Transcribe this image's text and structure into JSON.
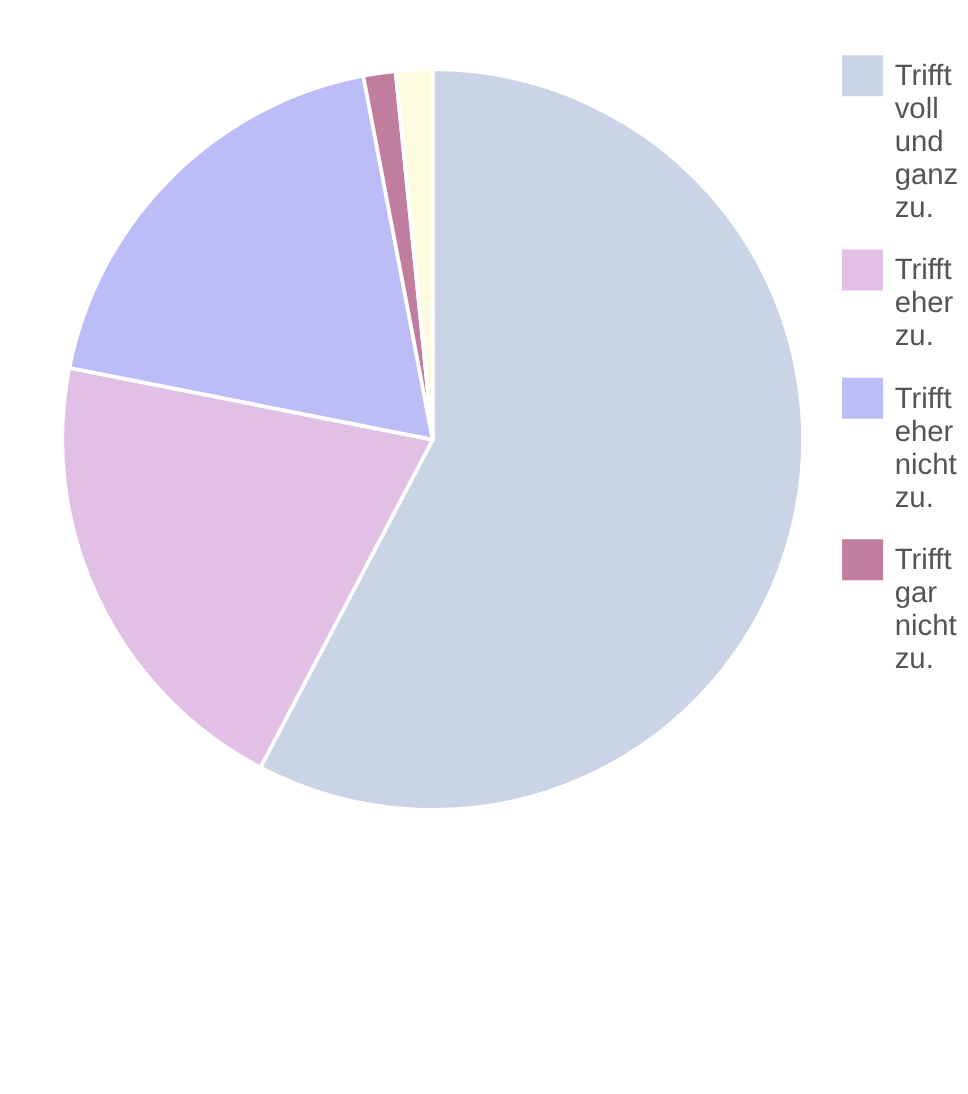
{
  "chart_data": {
    "type": "pie",
    "categories": [
      "Trifft voll und ganz zu.",
      "Trifft eher zu.",
      "Trifft eher nicht zu.",
      "Trifft gar nicht zu.",
      null
    ],
    "values": [
      57.7,
      20.4,
      18.9,
      1.4,
      1.6
    ],
    "colors": [
      "#c9d5e6",
      "#e2c0e6",
      "#bcbcf7",
      "#c07d9e",
      "#fefce0"
    ],
    "legend": "right"
  }
}
